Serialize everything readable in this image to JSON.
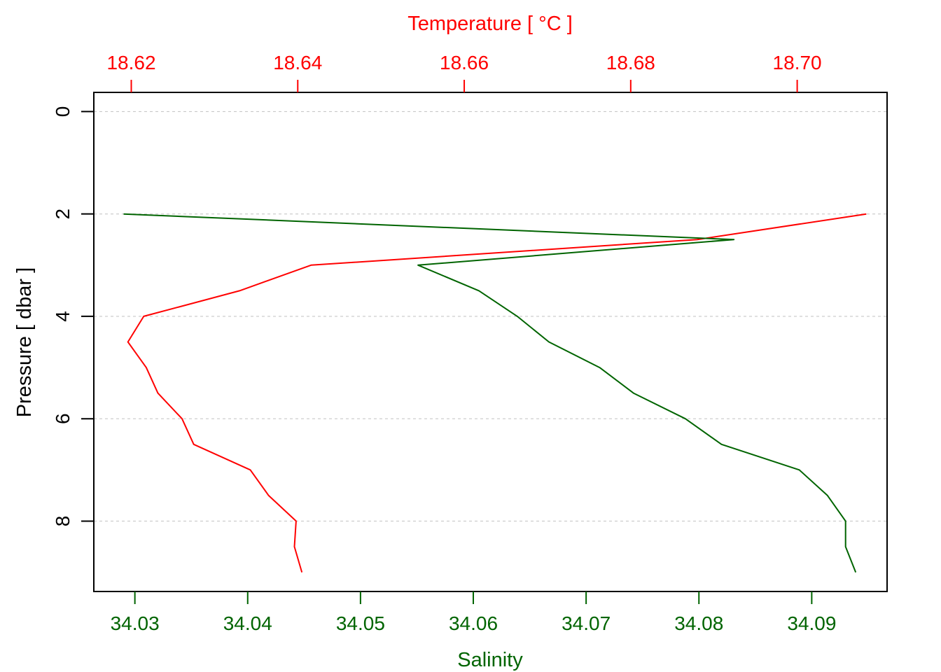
{
  "chart_data": {
    "type": "line",
    "title": "",
    "colors": {
      "temperature": "#ff0000",
      "salinity": "#006400",
      "frame": "#000000",
      "grid": "#c8c8c8"
    },
    "top_axis": {
      "label": "Temperature [ °C ]",
      "range": [
        18.6155,
        18.7108
      ],
      "ticks": [
        {
          "value": 18.62,
          "label": "18.62"
        },
        {
          "value": 18.64,
          "label": "18.64"
        },
        {
          "value": 18.66,
          "label": "18.66"
        },
        {
          "value": 18.68,
          "label": "18.68"
        },
        {
          "value": 18.7,
          "label": "18.70"
        }
      ]
    },
    "bottom_axis": {
      "label": "Salinity",
      "range": [
        34.02636,
        34.09668
      ],
      "ticks": [
        {
          "value": 34.03,
          "label": "34.03"
        },
        {
          "value": 34.04,
          "label": "34.04"
        },
        {
          "value": 34.05,
          "label": "34.05"
        },
        {
          "value": 34.06,
          "label": "34.06"
        },
        {
          "value": 34.07,
          "label": "34.07"
        },
        {
          "value": 34.08,
          "label": "34.08"
        },
        {
          "value": 34.09,
          "label": "34.09"
        }
      ]
    },
    "left_axis": {
      "label": "Pressure [ dbar ]",
      "range": [
        -0.375,
        9.375
      ],
      "reversed": true,
      "ticks": [
        {
          "value": 0,
          "label": "0"
        },
        {
          "value": 2,
          "label": "2"
        },
        {
          "value": 4,
          "label": "4"
        },
        {
          "value": 6,
          "label": "6"
        },
        {
          "value": 8,
          "label": "8"
        }
      ]
    },
    "grid": {
      "horizontal": true,
      "style": "dashed"
    },
    "series": [
      {
        "key": "temperature",
        "axis": "top",
        "pressure": [
          2,
          2.5,
          3,
          3.5,
          4,
          4.5,
          5,
          5.5,
          6,
          6.5,
          7,
          7.5,
          8,
          8.5,
          9
        ],
        "values": [
          18.7083,
          18.688,
          18.6416,
          18.633,
          18.6215,
          18.6196,
          18.6218,
          18.6232,
          18.6261,
          18.6275,
          18.6343,
          18.6365,
          18.6398,
          18.6396,
          18.6405
        ]
      },
      {
        "key": "salinity",
        "axis": "bottom",
        "pressure": [
          2,
          2.5,
          3,
          3.5,
          4,
          4.5,
          5,
          5.5,
          6,
          6.5,
          7,
          7.5,
          8,
          8.5,
          9
        ],
        "values": [
          34.029,
          34.0831,
          34.0551,
          34.0605,
          34.0639,
          34.0667,
          34.0712,
          34.0742,
          34.0788,
          34.082,
          34.0889,
          34.0914,
          34.093,
          34.093,
          34.0939
        ]
      }
    ]
  }
}
